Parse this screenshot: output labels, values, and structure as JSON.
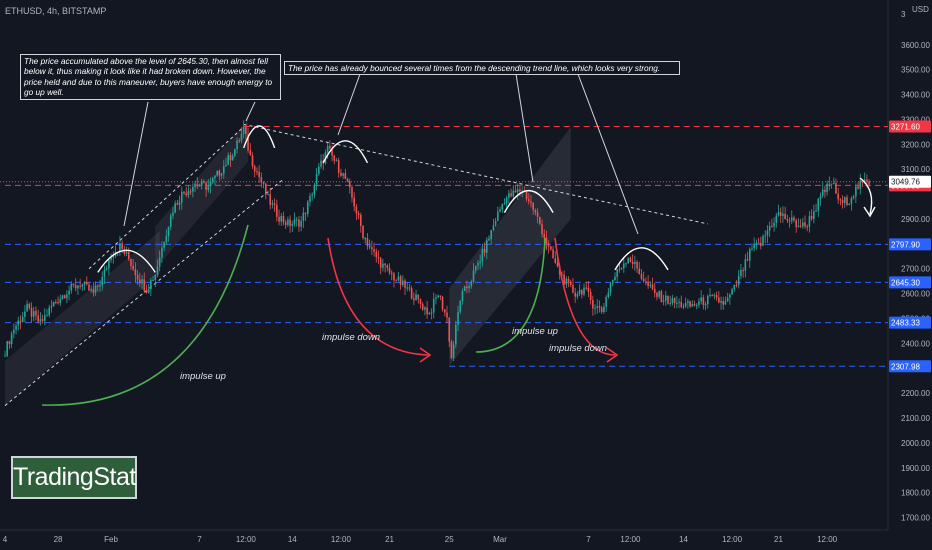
{
  "header": {
    "symbol_line": "ETHUSD, 4h, BITSTAMP"
  },
  "axis_unit": "USD",
  "axis_multiplier": "3",
  "annotations": {
    "left_note": "The price accumulated above the level of 2645.30, then almost fell below it, thus making it look like it had broken down. However, the price held and due to this maneuver, buyers have enough energy to go up well.",
    "top_note": "The price has already bounced several times from the descending trend line, which looks very strong.",
    "impulse_up_1": "impulse up",
    "impulse_down_1": "impulse down",
    "impulse_up_2": "impulse up",
    "impulse_down_2": "impulse down"
  },
  "watermark": "TradingStat",
  "colors": {
    "background": "#131722",
    "candle_up": "#26a69a",
    "candle_down": "#ef5350",
    "support_line": "#2962ff",
    "resistance_line": "#f23645",
    "impulse_up": "#4caf50",
    "impulse_down": "#f23645"
  },
  "chart_data": {
    "type": "candlestick",
    "symbol": "ETHUSD",
    "timeframe": "4h",
    "exchange": "BITSTAMP",
    "ylim": [
      1650,
      3780
    ],
    "y_ticks": [
      3600,
      3500,
      3400,
      3300,
      3200,
      3100,
      2900,
      2800,
      2700,
      2600,
      2500,
      2400,
      2300,
      2200,
      2100,
      2000,
      1900,
      1800,
      1700
    ],
    "y_tick_labels": [
      "3600.00",
      "3500.00",
      "3400.00",
      "3300.00",
      "3200.00",
      "3100.00",
      "2900.00",
      "2800.00",
      "2700.00",
      "2600.00",
      "2500.00",
      "2400.00",
      "2300.00",
      "2200.00",
      "2100.00",
      "2000.00",
      "1900.00",
      "1800.00",
      "1700.00"
    ],
    "x_ticks": [
      {
        "label": "4",
        "i": 0
      },
      {
        "label": "28",
        "i": 24
      },
      {
        "label": "Feb",
        "i": 48
      },
      {
        "label": "7",
        "i": 88
      },
      {
        "label": "12:00",
        "i": 109
      },
      {
        "label": "14",
        "i": 130
      },
      {
        "label": "12:00",
        "i": 152
      },
      {
        "label": "21",
        "i": 174
      },
      {
        "label": "25",
        "i": 201
      },
      {
        "label": "Mar",
        "i": 224
      },
      {
        "label": "7",
        "i": 264
      },
      {
        "label": "12:00",
        "i": 283
      },
      {
        "label": "14",
        "i": 307
      },
      {
        "label": "12:00",
        "i": 329
      },
      {
        "label": "21",
        "i": 350
      },
      {
        "label": "12:00",
        "i": 372
      }
    ],
    "levels": [
      {
        "value": 3271.6,
        "label": "3271.60",
        "color": "red"
      },
      {
        "value": 3035.08,
        "label": "3035.08",
        "color": "red"
      },
      {
        "value": 2797.9,
        "label": "2797.90",
        "color": "blue"
      },
      {
        "value": 2645.3,
        "label": "2645.30",
        "color": "blue"
      },
      {
        "value": 2483.33,
        "label": "2483.33",
        "color": "blue"
      },
      {
        "value": 2307.98,
        "label": "2307.98",
        "color": "blue"
      }
    ],
    "last_price": {
      "value": 3049.76,
      "label": "3049.76"
    },
    "close_path": [
      [
        0,
        2370
      ],
      [
        4,
        2460
      ],
      [
        10,
        2540
      ],
      [
        16,
        2480
      ],
      [
        22,
        2560
      ],
      [
        28,
        2610
      ],
      [
        34,
        2640
      ],
      [
        40,
        2600
      ],
      [
        44,
        2660
      ],
      [
        48,
        2760
      ],
      [
        52,
        2790
      ],
      [
        56,
        2740
      ],
      [
        60,
        2670
      ],
      [
        64,
        2620
      ],
      [
        68,
        2680
      ],
      [
        72,
        2820
      ],
      [
        76,
        2940
      ],
      [
        80,
        3000
      ],
      [
        86,
        3040
      ],
      [
        92,
        3030
      ],
      [
        98,
        3100
      ],
      [
        104,
        3180
      ],
      [
        108,
        3260
      ],
      [
        111,
        3150
      ],
      [
        115,
        3070
      ],
      [
        119,
        2980
      ],
      [
        124,
        2910
      ],
      [
        128,
        2880
      ],
      [
        134,
        2890
      ],
      [
        138,
        2980
      ],
      [
        142,
        3100
      ],
      [
        146,
        3180
      ],
      [
        150,
        3120
      ],
      [
        154,
        3060
      ],
      [
        158,
        2960
      ],
      [
        162,
        2840
      ],
      [
        166,
        2770
      ],
      [
        172,
        2700
      ],
      [
        178,
        2650
      ],
      [
        184,
        2600
      ],
      [
        188,
        2560
      ],
      [
        192,
        2520
      ],
      [
        196,
        2600
      ],
      [
        200,
        2500
      ],
      [
        202,
        2340
      ],
      [
        206,
        2580
      ],
      [
        210,
        2640
      ],
      [
        214,
        2720
      ],
      [
        218,
        2800
      ],
      [
        222,
        2900
      ],
      [
        226,
        2980
      ],
      [
        230,
        3000
      ],
      [
        234,
        3020
      ],
      [
        238,
        2960
      ],
      [
        242,
        2880
      ],
      [
        246,
        2780
      ],
      [
        250,
        2700
      ],
      [
        254,
        2640
      ],
      [
        258,
        2600
      ],
      [
        262,
        2620
      ],
      [
        266,
        2560
      ],
      [
        270,
        2530
      ],
      [
        274,
        2640
      ],
      [
        278,
        2700
      ],
      [
        282,
        2750
      ],
      [
        286,
        2700
      ],
      [
        290,
        2640
      ],
      [
        294,
        2600
      ],
      [
        298,
        2580
      ],
      [
        304,
        2560
      ],
      [
        310,
        2550
      ],
      [
        316,
        2570
      ],
      [
        320,
        2580
      ],
      [
        326,
        2560
      ],
      [
        330,
        2620
      ],
      [
        334,
        2700
      ],
      [
        338,
        2780
      ],
      [
        342,
        2800
      ],
      [
        346,
        2870
      ],
      [
        350,
        2920
      ],
      [
        354,
        2900
      ],
      [
        358,
        2880
      ],
      [
        362,
        2870
      ],
      [
        366,
        2930
      ],
      [
        370,
        3000
      ],
      [
        374,
        3050
      ],
      [
        378,
        2960
      ],
      [
        382,
        2980
      ],
      [
        386,
        3030
      ],
      [
        390,
        3050
      ],
      [
        391,
        3049.76
      ]
    ]
  }
}
